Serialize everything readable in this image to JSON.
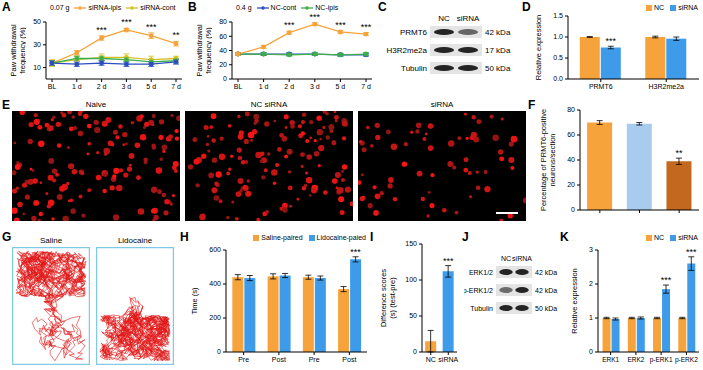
{
  "chart_data": [
    {
      "panel": "A",
      "type": "line",
      "annotation": "0.07 g",
      "y_label": [
        "Paw withdrawal",
        "frequency (%)"
      ],
      "categories": [
        "BL",
        "1 d",
        "2 d",
        "3 d",
        "5 d",
        "7 d"
      ],
      "ylim": [
        0,
        50
      ],
      "yticks": [
        0,
        10,
        20,
        30,
        40,
        50
      ],
      "legend": "top",
      "marker": "circle",
      "series": [
        {
          "name": "siRNA-ipis",
          "color": "#f5a33a",
          "values": [
            14,
            23,
            36,
            43,
            38,
            31
          ],
          "errors": [
            2,
            2,
            2,
            1.5,
            2.5,
            2
          ]
        },
        {
          "name": "siRNA-cont",
          "color": "#d4c12a",
          "values": [
            14,
            17,
            19,
            19,
            17,
            18
          ],
          "errors": [
            3,
            3,
            3,
            3,
            3,
            2
          ]
        },
        {
          "name": null,
          "color": "#3fae49",
          "values": [
            14,
            18,
            18,
            17,
            15,
            16
          ],
          "errors": [
            2,
            2,
            2,
            2,
            2,
            2
          ]
        },
        {
          "name": null,
          "color": "#2a4fbf",
          "values": [
            14,
            13,
            14,
            13,
            13,
            15
          ],
          "errors": [
            2,
            2,
            2,
            2,
            2,
            2
          ]
        }
      ],
      "annotations": [
        {
          "index": 2,
          "text": "***"
        },
        {
          "index": 3,
          "text": "***"
        },
        {
          "index": 4,
          "text": "***"
        },
        {
          "index": 5,
          "text": "**"
        }
      ]
    },
    {
      "panel": "B",
      "type": "line",
      "annotation": "0.4 g",
      "y_label": [
        "Paw withdrawal",
        "frequency (%)"
      ],
      "categories": [
        "BL",
        "1 d",
        "2 d",
        "3 d",
        "5 d",
        "7 d"
      ],
      "ylim": [
        0,
        80
      ],
      "yticks": [
        0,
        20,
        40,
        60,
        80
      ],
      "legend": "top",
      "marker": "circle",
      "series": [
        {
          "name": "NC-cont",
          "color": "#2a4fbf",
          "values": [
            35,
            35,
            35,
            35,
            34,
            34
          ],
          "errors": [
            2,
            2,
            2,
            2,
            2,
            2
          ]
        },
        {
          "name": "NC-ipis",
          "color": "#3fae49",
          "values": [
            35,
            35,
            34,
            35,
            34,
            35
          ],
          "errors": [
            2,
            2,
            2,
            2,
            2,
            2
          ]
        },
        {
          "name": null,
          "color": "#f5a33a",
          "values": [
            35,
            45,
            65,
            77,
            66,
            63
          ],
          "errors": [
            2,
            2,
            2,
            2,
            2,
            2
          ]
        }
      ],
      "annotations": [
        {
          "index": 2,
          "text": "***"
        },
        {
          "index": 3,
          "text": "***"
        },
        {
          "index": 4,
          "text": "***"
        },
        {
          "index": 5,
          "text": "***"
        }
      ]
    },
    {
      "panel": "D",
      "type": "bar",
      "y_label": "Relative expression",
      "categories": [
        "PRMT6",
        "H3R2me2a"
      ],
      "ylim": [
        0,
        1.5
      ],
      "yticks": [
        {
          "value": 0,
          "label": "0.0"
        },
        {
          "value": 0.5,
          "label": "0.5"
        },
        {
          "value": 1,
          "label": "1.0"
        },
        {
          "value": 1.5,
          "label": "1.5"
        }
      ],
      "legend": "top",
      "series": [
        {
          "name": "NC",
          "color": "#f5a33a",
          "values": [
            1,
            1
          ],
          "errors": [
            0.01,
            0.02
          ]
        },
        {
          "name": "siRNA",
          "color": "#3d9be9",
          "values": [
            0.75,
            0.96
          ],
          "errors": [
            0.03,
            0.04
          ]
        }
      ],
      "annotations": [
        {
          "index": 0,
          "series": "siRNA",
          "text": "***"
        }
      ]
    },
    {
      "panel": "F",
      "type": "bar",
      "y_label": [
        "Percentage of PRMT6-positive",
        "neurons/section"
      ],
      "categories": [
        null,
        null,
        null
      ],
      "ylim": [
        0,
        80
      ],
      "yticks": [
        0,
        20,
        40,
        60,
        80
      ],
      "series": [
        {
          "name": null,
          "colors": [
            "#f5a33a",
            "#a8cbee",
            "#c2681f"
          ],
          "values": [
            70,
            69,
            39
          ],
          "errors": [
            1.5,
            1,
            2.5
          ]
        }
      ],
      "annotations": [
        {
          "index": 2,
          "text": "**"
        }
      ]
    },
    {
      "panel": "H",
      "type": "bar",
      "y_label": "Time (s)",
      "categories": [
        "Pre",
        "Post",
        "Pre",
        "Post"
      ],
      "ylim": [
        0,
        600
      ],
      "yticks": [
        0,
        200,
        400,
        600
      ],
      "legend": "top",
      "series": [
        {
          "name": "Saline-paired",
          "color": "#f5a33a",
          "values": [
            440,
            445,
            440,
            370
          ],
          "errors": [
            15,
            15,
            12,
            15
          ]
        },
        {
          "name": "Lidocaine-paied",
          "color": "#3d9be9",
          "values": [
            435,
            450,
            435,
            545
          ],
          "errors": [
            15,
            12,
            12,
            15
          ]
        }
      ],
      "annotations": [
        {
          "index": 3,
          "series": "Lidocaine-paied",
          "text": "***"
        }
      ]
    },
    {
      "panel": "I",
      "type": "bar",
      "y_label": [
        "Difference scores",
        "(s) (test-pre)"
      ],
      "categories": [
        "NC",
        "siRNA"
      ],
      "ylim": [
        0,
        150
      ],
      "yticks": [
        0,
        50,
        100,
        150
      ],
      "series": [
        {
          "name": null,
          "colors": [
            "#f5a33a",
            "#3d9be9"
          ],
          "values": [
            15,
            112
          ],
          "errors": [
            15,
            8
          ]
        }
      ],
      "annotations": [
        {
          "index": 1,
          "text": "***"
        }
      ]
    },
    {
      "panel": "K",
      "type": "bar",
      "y_label": "Relative expression",
      "categories": [
        "ERK1",
        "ERK2",
        "p-ERK1",
        "p-ERK2"
      ],
      "ylim": [
        0,
        3
      ],
      "yticks": [
        0,
        1,
        2,
        3
      ],
      "legend": "top",
      "series": [
        {
          "name": "NC",
          "color": "#f5a33a",
          "values": [
            1,
            1,
            1,
            1
          ],
          "errors": [
            0.02,
            0.02,
            0.02,
            0.02
          ]
        },
        {
          "name": "siRNA",
          "color": "#3d9be9",
          "values": [
            0.97,
            1,
            1.85,
            2.6
          ],
          "errors": [
            0.03,
            0.03,
            0.12,
            0.2
          ]
        }
      ],
      "annotations": [
        {
          "index": 2,
          "series": "siRNA",
          "text": "***"
        },
        {
          "index": 3,
          "series": "siRNA",
          "text": "***"
        }
      ]
    }
  ],
  "blots": [
    {
      "panel": "C",
      "lanes": [
        "NC",
        "siRNA"
      ],
      "rows": [
        {
          "protein": "PRMT6",
          "size": "42 kDa"
        },
        {
          "protein": "H3R2me2a",
          "size": "17 kDa"
        },
        {
          "protein": "Tubulin",
          "size": "50 kDa"
        }
      ]
    },
    {
      "panel": "J",
      "lanes": [
        "NC",
        "siRNA"
      ],
      "rows": [
        {
          "protein": "ERK1/2",
          "size": "42 kDa"
        },
        {
          "protein": "p-ERK1/2",
          "size": "42 kDa"
        },
        {
          "protein": "Tubulin",
          "size": "50 kDa"
        }
      ]
    }
  ],
  "micrographs": {
    "panel": "E",
    "labels": [
      "Naive",
      "NC siRNA",
      "siRNA"
    ]
  },
  "tracks": {
    "panel": "G",
    "labels": [
      "Saline",
      "Lidocaine"
    ]
  }
}
